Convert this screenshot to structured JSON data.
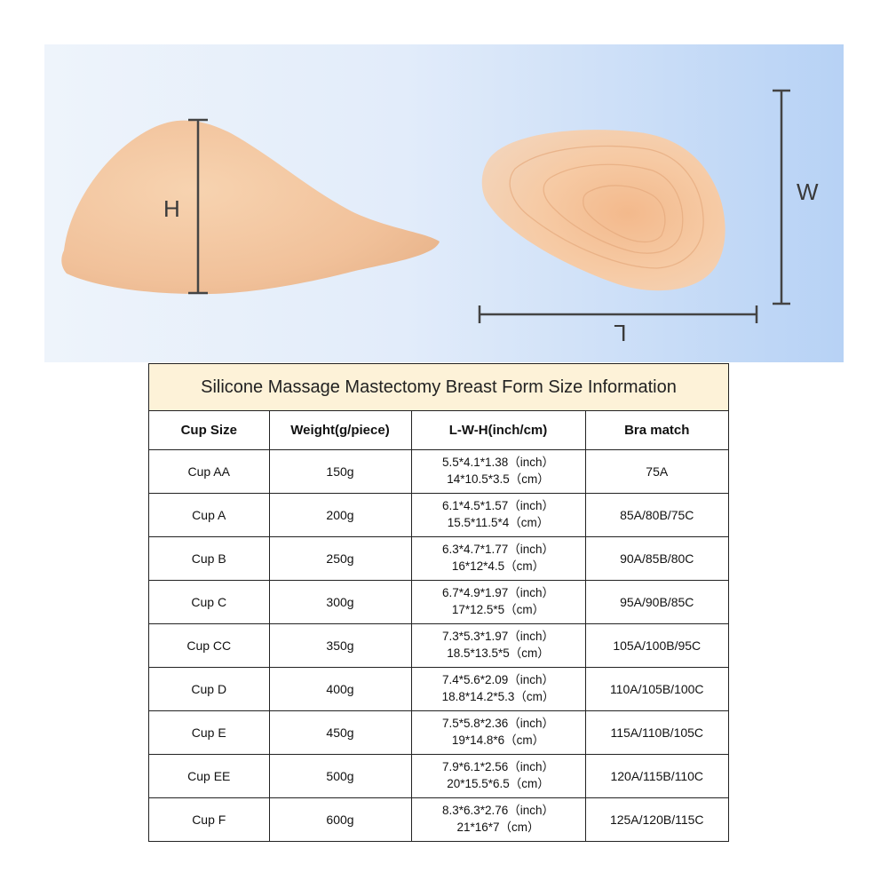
{
  "diagram": {
    "height_label": "H",
    "width_label": "W",
    "length_label": "L",
    "form_color": "#f4c9a2",
    "line_color": "#444444"
  },
  "table": {
    "title": "Silicone Massage Mastectomy Breast Form Size Information",
    "header_bg": "#fdf2d8",
    "headers": [
      "Cup Size",
      "Weight(g/piece)",
      "L-W-H(inch/cm)",
      "Bra match"
    ],
    "rows": [
      {
        "cup": "Cup AA",
        "weight": "150g",
        "inch": "5.5*4.1*1.38（inch）",
        "cm": "14*10.5*3.5（cm）",
        "bra": "75A"
      },
      {
        "cup": "Cup A",
        "weight": "200g",
        "inch": "6.1*4.5*1.57（inch）",
        "cm": "15.5*11.5*4（cm）",
        "bra": "85A/80B/75C"
      },
      {
        "cup": "Cup B",
        "weight": "250g",
        "inch": "6.3*4.7*1.77（inch）",
        "cm": "16*12*4.5（cm）",
        "bra": "90A/85B/80C"
      },
      {
        "cup": "Cup C",
        "weight": "300g",
        "inch": "6.7*4.9*1.97（inch）",
        "cm": "17*12.5*5（cm）",
        "bra": "95A/90B/85C"
      },
      {
        "cup": "Cup CC",
        "weight": "350g",
        "inch": "7.3*5.3*1.97（inch）",
        "cm": "18.5*13.5*5（cm）",
        "bra": "105A/100B/95C"
      },
      {
        "cup": "Cup D",
        "weight": "400g",
        "inch": "7.4*5.6*2.09（inch）",
        "cm": "18.8*14.2*5.3（cm）",
        "bra": "110A/105B/100C"
      },
      {
        "cup": "Cup E",
        "weight": "450g",
        "inch": "7.5*5.8*2.36（inch）",
        "cm": "19*14.8*6（cm）",
        "bra": "115A/110B/105C"
      },
      {
        "cup": "Cup EE",
        "weight": "500g",
        "inch": "7.9*6.1*2.56（inch）",
        "cm": "20*15.5*6.5（cm）",
        "bra": "120A/115B/110C"
      },
      {
        "cup": "Cup F",
        "weight": "600g",
        "inch": "8.3*6.3*2.76（inch）",
        "cm": "21*16*7（cm）",
        "bra": "125A/120B/115C"
      }
    ]
  }
}
